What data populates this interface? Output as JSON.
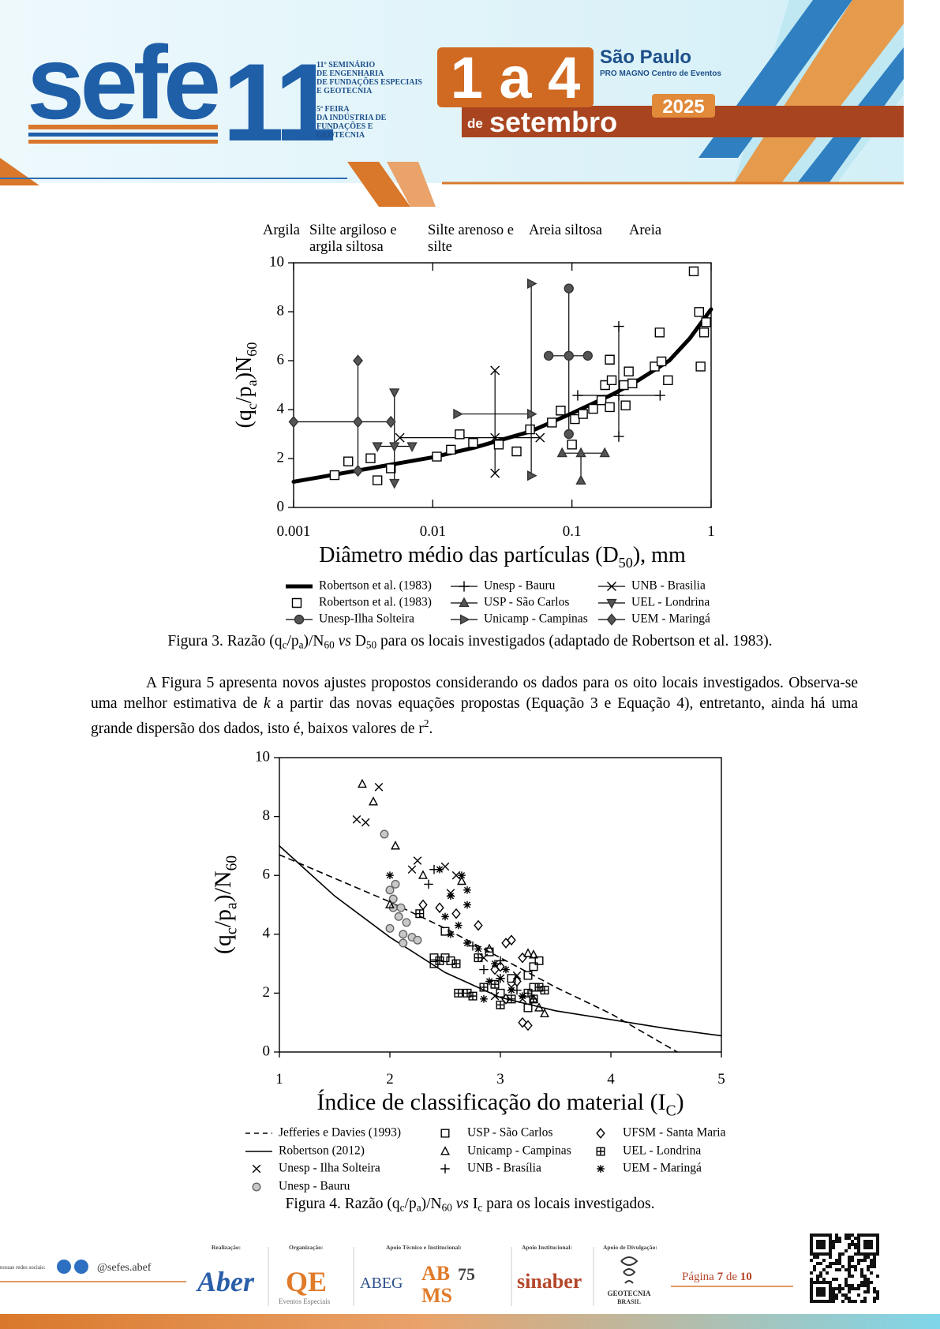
{
  "header": {
    "logo": "sefe",
    "logo_number": "11",
    "seminar": [
      "11º SEMINÁRIO",
      "DE ENGENHARIA",
      "DE FUNDAÇÕES ESPECIAIS",
      "E GEOTECNIA"
    ],
    "fair": [
      "5ª FEIRA",
      "DA INDÚSTRIA DE",
      "FUNDAÇÕES E",
      "GEOTECNIA"
    ],
    "dates": "1 a 4",
    "month_prefix": "de",
    "month": "setembro",
    "city": "São Paulo",
    "venue": "PRO MAGNO Centro de Eventos",
    "year": "2025"
  },
  "chart_data": [
    {
      "type": "scatter",
      "xscale": "log",
      "xlim": [
        0.001,
        1
      ],
      "xticks": [
        0.001,
        0.01,
        0.1,
        1
      ],
      "ylim": [
        0,
        10
      ],
      "yticks": [
        0,
        2,
        4,
        6,
        8,
        10
      ],
      "xlabel": [
        "Diâmetro médio das partículas (D",
        "50",
        "), mm"
      ],
      "ylabel": [
        "(q",
        "c",
        "/p",
        "a",
        ")N",
        "60"
      ],
      "zones": [
        [
          "Argila"
        ],
        [
          "Silte argiloso e",
          "argila siltosa"
        ],
        [
          "Silte arenoso e",
          "silte"
        ],
        [
          "Areia siltosa"
        ],
        [
          "Areia"
        ]
      ],
      "series": [
        {
          "name": "Robertson et al. (1983)",
          "kind": "line",
          "color": "#000000",
          "x": [
            0.001,
            0.002,
            0.005,
            0.01,
            0.02,
            0.05,
            0.1,
            0.2,
            0.3,
            0.5,
            0.7,
            1
          ],
          "values": [
            1.05,
            1.35,
            1.75,
            2.05,
            2.45,
            3.1,
            3.85,
            4.65,
            5.2,
            6.0,
            6.9,
            8.1
          ]
        },
        {
          "name": "Unesp - Bauru",
          "marker": "plus",
          "color": "#000000",
          "fill": "none",
          "x": [
            0.217
          ],
          "values": [
            4.58
          ],
          "xrange": [
            [
              0.11,
              0.43
            ]
          ],
          "yrange": [
            [
              2.9,
              7.4
            ]
          ]
        },
        {
          "name": "UNB - Brasilia",
          "marker": "x",
          "color": "#000000",
          "fill": "none",
          "x": [
            0.028
          ],
          "values": [
            2.85
          ],
          "xrange": [
            [
              0.0058,
              0.059
            ]
          ],
          "yrange": [
            [
              1.4,
              5.6
            ]
          ]
        },
        {
          "name": "Robertson et al. (1983)",
          "marker": "square",
          "color": "#000000",
          "fill": "#ffffff",
          "x": [
            0.00197,
            0.00247,
            0.00357,
            0.004,
            0.005,
            0.0107,
            0.0135,
            0.0156,
            0.0195,
            0.0298,
            0.04,
            0.05,
            0.0718,
            0.083,
            0.1,
            0.105,
            0.12,
            0.142,
            0.163,
            0.173,
            0.187,
            0.193,
            0.187,
            0.236,
            0.256,
            0.272,
            0.243,
            0.393,
            0.427,
            0.44,
            0.49,
            0.75,
            0.82,
            0.84,
            0.89,
            0.92
          ],
          "values": [
            1.32,
            1.88,
            2.01,
            1.11,
            1.6,
            2.08,
            2.36,
            2.99,
            2.64,
            2.57,
            2.29,
            3.19,
            3.47,
            3.96,
            2.57,
            3.61,
            3.82,
            4.03,
            4.38,
            5.0,
            6.04,
            5.2,
            4.1,
            5.0,
            5.56,
            5.07,
            4.17,
            5.76,
            7.15,
            5.97,
            5.2,
            9.65,
            7.99,
            5.76,
            7.15,
            7.57
          ]
        },
        {
          "name": "USP - São Carlos",
          "marker": "triangle-up",
          "color": "#333333",
          "fill": "#555555",
          "x": [
            0.116
          ],
          "values": [
            2.22
          ],
          "xrange": [
            [
              0.085,
              0.172
            ]
          ],
          "yrange": [
            [
              1.1,
              2.22
            ]
          ]
        },
        {
          "name": "UEL - Londrina",
          "marker": "triangle-down",
          "color": "#333333",
          "fill": "#555555",
          "x": [
            0.0053
          ],
          "values": [
            2.5
          ],
          "xrange": [
            [
              0.004,
              0.0071
            ]
          ],
          "yrange": [
            [
              1.0,
              4.7
            ]
          ]
        },
        {
          "name": "Unesp-Ilha Solteira",
          "marker": "circle",
          "color": "#333333",
          "fill": "#555555",
          "x": [
            0.095
          ],
          "values": [
            6.2
          ],
          "xrange": [
            [
              0.068,
              0.13
            ]
          ],
          "yrange": [
            [
              3.0,
              8.95
            ]
          ]
        },
        {
          "name": "Unicamp - Campinas",
          "marker": "triangle-right",
          "color": "#333333",
          "fill": "#555555",
          "x": [
            0.051
          ],
          "values": [
            3.82
          ],
          "xrange": [
            [
              0.015,
              0.051
            ]
          ],
          "yrange": [
            [
              1.3,
              9.15
            ]
          ]
        },
        {
          "name": "UEM - Maringá",
          "marker": "diamond",
          "color": "#333333",
          "fill": "#555555",
          "x": [
            0.0029
          ],
          "values": [
            3.5
          ],
          "xrange": [
            [
              0.001,
              0.005
            ]
          ],
          "yrange": [
            [
              1.5,
              6.0
            ]
          ]
        }
      ]
    },
    {
      "type": "scatter",
      "xlim": [
        1,
        5
      ],
      "xticks": [
        1,
        2,
        3,
        4,
        5
      ],
      "ylim": [
        0,
        10
      ],
      "yticks": [
        0,
        2,
        4,
        6,
        8,
        10
      ],
      "xlabel": [
        "Índice de classificação do material (I",
        "C",
        ")"
      ],
      "ylabel": [
        "(q",
        "c",
        "/p",
        "a",
        ")/N",
        "60"
      ],
      "series": [
        {
          "name": "Jefferies e Davies (1993)",
          "kind": "line",
          "dash": true,
          "color": "#000000",
          "x": [
            1,
            1.5,
            2,
            2.5,
            3,
            3.5,
            4,
            4.3,
            4.6
          ],
          "values": [
            6.7,
            5.9,
            5.1,
            4.2,
            3.2,
            2.2,
            1.3,
            0.65,
            0
          ]
        },
        {
          "name": "Robertson (2012)",
          "kind": "line",
          "color": "#000000",
          "x": [
            1,
            1.5,
            2,
            2.5,
            3,
            3.5,
            4,
            4.5,
            5
          ],
          "values": [
            7.0,
            5.3,
            3.9,
            2.7,
            1.85,
            1.4,
            1.1,
            0.8,
            0.55
          ]
        },
        {
          "name": "Unesp - Ilha Solteira",
          "marker": "x",
          "color": "#000000",
          "fill": "none",
          "x": [
            1.9,
            1.7,
            1.78,
            2.25,
            2.2,
            2.5,
            2.6,
            2.55,
            2.85,
            3.0,
            3.1,
            3.2,
            2.95,
            3.15
          ],
          "values": [
            9.0,
            7.9,
            7.8,
            6.5,
            6.2,
            6.3,
            6.0,
            5.4,
            3.2,
            2.5,
            2.2,
            1.8,
            1.9,
            2.6
          ]
        },
        {
          "name": "Unesp - Bauru",
          "marker": "circle",
          "color": "#666666",
          "fill": "#c8c8c8",
          "x": [
            1.95,
            2.05,
            2.0,
            2.03,
            2.1,
            2.08,
            2.15,
            2.0,
            2.12,
            2.2,
            2.25,
            2.12,
            2.03
          ],
          "values": [
            7.4,
            5.7,
            5.5,
            5.2,
            4.9,
            4.6,
            4.4,
            4.2,
            4.0,
            3.9,
            3.8,
            3.7,
            4.9
          ]
        },
        {
          "name": "USP - São Carlos",
          "marker": "square",
          "color": "#000000",
          "fill": "none",
          "x": [
            2.5,
            2.55,
            2.4,
            2.4,
            2.5,
            2.9,
            3.3,
            3.35,
            3.3,
            3.25,
            3.1,
            3.0,
            3.25
          ],
          "values": [
            3.2,
            3.1,
            3.2,
            3.0,
            4.1,
            3.4,
            2.9,
            3.1,
            2.2,
            1.5,
            2.5,
            2.0,
            2.6
          ]
        },
        {
          "name": "Unicamp - Campinas",
          "marker": "triangle-up",
          "color": "#000000",
          "fill": "none",
          "x": [
            1.75,
            1.85,
            2.05,
            2.0,
            2.3,
            2.65,
            2.9,
            3.3,
            3.25,
            3.35,
            3.4,
            3.3
          ],
          "values": [
            9.1,
            8.5,
            7.0,
            5.0,
            6.0,
            5.8,
            3.5,
            3.3,
            3.35,
            1.5,
            1.3,
            1.8
          ]
        },
        {
          "name": "UNB - Brasília",
          "marker": "plus",
          "color": "#000000",
          "fill": "none",
          "x": [
            2.35,
            2.4,
            2.75,
            2.85,
            3.0,
            3.15,
            3.0
          ],
          "values": [
            5.7,
            6.2,
            3.6,
            2.8,
            2.5,
            2.1,
            3.1
          ]
        },
        {
          "name": "UFSM - Santa Maria",
          "marker": "diamond",
          "color": "#000000",
          "fill": "none",
          "x": [
            2.3,
            2.45,
            2.6,
            2.8,
            3.05,
            3.1,
            3.2,
            3.2,
            3.25,
            2.95,
            3.05,
            3.15,
            3.0
          ],
          "values": [
            5.0,
            4.9,
            4.7,
            4.3,
            3.7,
            3.8,
            3.2,
            1.0,
            0.9,
            2.8,
            1.8,
            2.4,
            2.9
          ]
        },
        {
          "name": "UEL - Londrina",
          "marker": "square-plus",
          "color": "#000000",
          "fill": "none",
          "x": [
            2.8,
            2.45,
            2.6,
            2.27,
            2.7,
            2.75,
            2.62,
            2.85,
            2.95,
            3.1,
            3.25,
            3.3,
            3.4,
            3.35,
            3.0
          ],
          "values": [
            3.2,
            3.1,
            3.0,
            4.7,
            2.0,
            1.9,
            2.0,
            2.2,
            2.3,
            1.8,
            2.0,
            1.8,
            2.1,
            2.2,
            1.6
          ]
        },
        {
          "name": "UEM - Maringá",
          "marker": "asterisk",
          "color": "#000000",
          "fill": "none",
          "x": [
            2.0,
            2.45,
            2.55,
            2.65,
            2.7,
            2.7,
            2.62,
            2.55,
            2.5,
            2.7,
            2.8,
            2.9,
            2.95,
            3.05,
            3.1,
            3.2,
            2.85
          ],
          "values": [
            6.0,
            6.2,
            5.3,
            6.0,
            5.5,
            5.0,
            4.3,
            4.0,
            4.6,
            3.7,
            3.5,
            2.4,
            3.0,
            2.8,
            2.1,
            1.9,
            1.8
          ]
        }
      ]
    }
  ],
  "figure3_caption": [
    "Figura 3. Razão (q",
    "c",
    "/p",
    "a",
    ")/N",
    "60",
    "vs",
    "D",
    "50",
    "para os locais investigados (adaptado de Robertson et al. 1983)."
  ],
  "paragraph": [
    "A Figura 5 apresenta novos ajustes propostos considerando os dados para os oito locais investigados. Observa-se uma melhor estimativa de",
    "k",
    "a partir das novas equações propostas (Equação 3 e Equação 4), entretanto, ainda há uma grande dispersão dos dados, isto é, baixos valores de r",
    "2",
    "."
  ],
  "figure4_caption": [
    "Figura 4. Razão (q",
    "c",
    "/p",
    "a",
    ")/N",
    "60",
    "vs",
    "I",
    "c",
    "para os locais investigados."
  ],
  "footer": {
    "social_label": "nossas redes sociais:",
    "handle": "@sefes.abef",
    "sections": [
      "Realização:",
      "Organização:",
      "Apoio Técnico e Institucional:",
      "Apoio Institucional:",
      "Apoio de Divulgação:"
    ],
    "logos": [
      "Aber",
      "QE",
      "Eventos Especiais",
      "ABEG",
      "AB",
      "75",
      "MS",
      "sinaber",
      "GEOTECNIA",
      "BRASIL"
    ],
    "page": [
      "Página",
      "7",
      "de",
      "10"
    ]
  }
}
